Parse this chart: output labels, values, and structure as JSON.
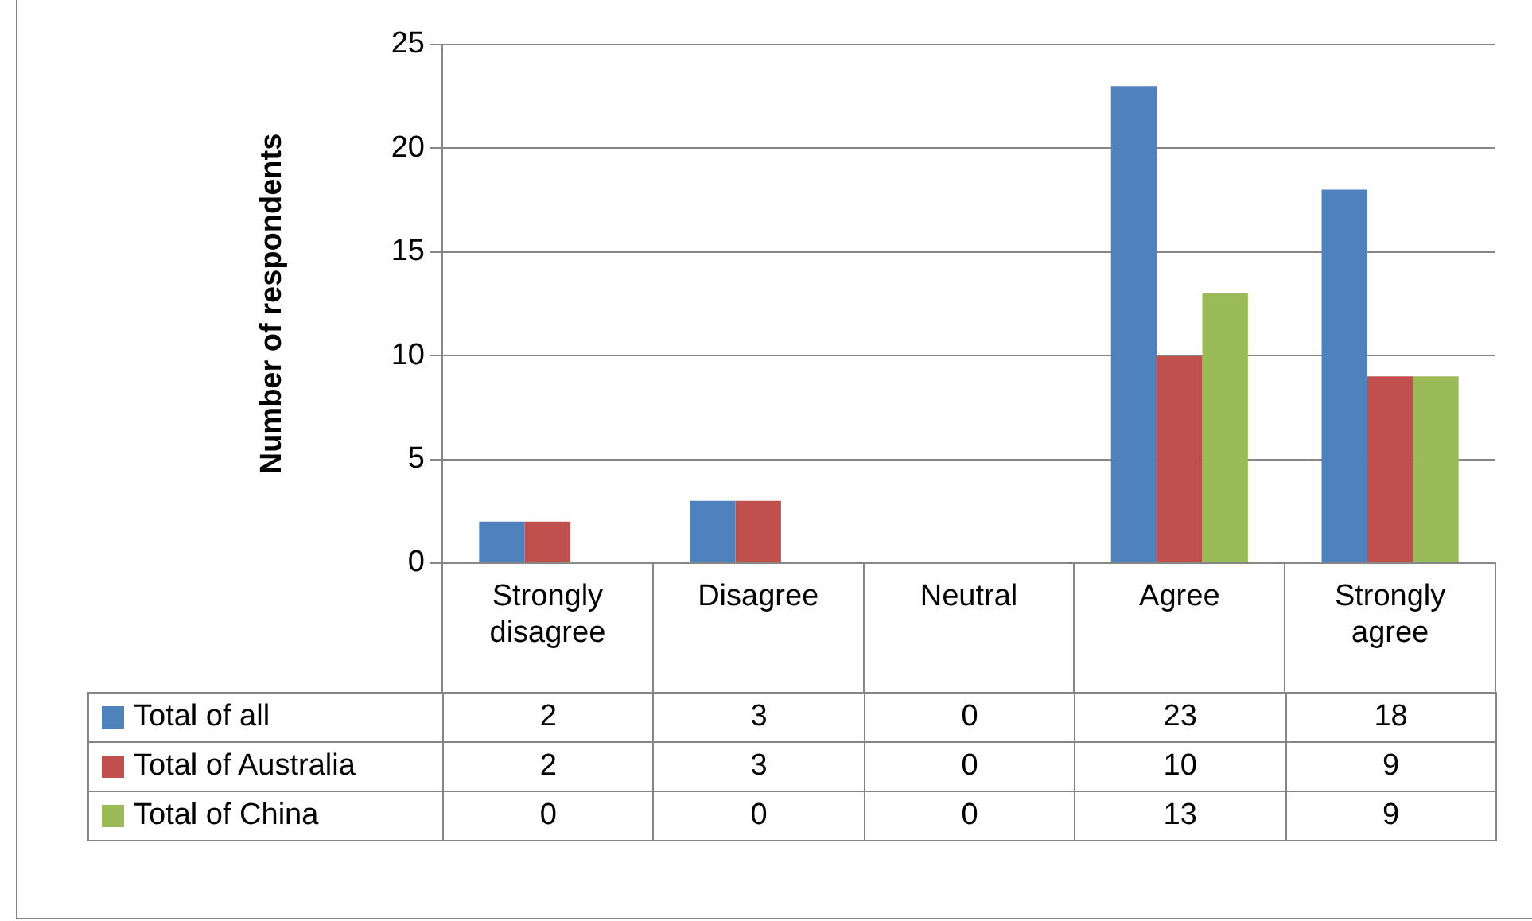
{
  "chart_data": {
    "type": "bar",
    "ylabel": "Number of respondents",
    "categories": [
      "Strongly disagree",
      "Disagree",
      "Neutral",
      "Agree",
      "Strongly agree"
    ],
    "series": [
      {
        "name": "Total of all",
        "color": "#4f81bd",
        "values": [
          2,
          3,
          0,
          23,
          18
        ]
      },
      {
        "name": "Total of Australia",
        "color": "#c0504d",
        "values": [
          2,
          3,
          0,
          10,
          9
        ]
      },
      {
        "name": "Total of China",
        "color": "#9bbb59",
        "values": [
          0,
          0,
          0,
          13,
          9
        ]
      }
    ],
    "ylim": [
      0,
      25
    ],
    "yticks": [
      0,
      5,
      10,
      15,
      20,
      25
    ],
    "grid": "y",
    "legend": "bottom left",
    "data_labels": true
  }
}
